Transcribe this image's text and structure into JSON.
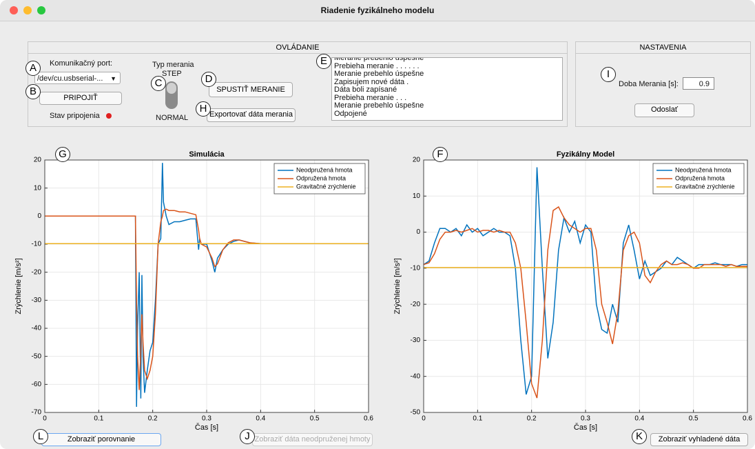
{
  "window": {
    "title": "Riadenie fyzikálneho modelu"
  },
  "controls": {
    "title": "OVLÁDANIE",
    "port_label": "Komunikačný port:",
    "port_value": "/dev/cu.usbserial-...",
    "connect_button": "PRIPOJIŤ",
    "connection_status": "Stav pripojenia",
    "mode_label": "Typ merania",
    "mode_on": "STEP",
    "mode_off": "NORMAL",
    "start_button": "SPUSTIŤ MERANIE",
    "export_button": "Exportovať dáta merania",
    "log": [
      "Meranie prebehlo úspešne",
      "Prebieha meranie . . . . . .",
      "Meranie prebehlo úspešne",
      "Zapisujem nové dáta .",
      "Dáta boli zapísané",
      "Prebieha meranie . . .",
      "Meranie prebehlo úspešne",
      "Odpojené"
    ]
  },
  "settings": {
    "title": "NASTAVENIA",
    "duration_label": "Doba Merania [s]:",
    "duration_value": "0.9",
    "send_button": "Odoslať"
  },
  "buttons": {
    "compare": "Zobraziť porovnanie",
    "unsprung": "Zobraziť dáta neodpruženej hmoty",
    "smoothed": "Zobraziť vyhladené dáta"
  },
  "markers": [
    "A",
    "B",
    "C",
    "D",
    "E",
    "F",
    "G",
    "H",
    "I",
    "J",
    "K",
    "L"
  ],
  "chart_data": [
    {
      "type": "line",
      "title": "Simulácia",
      "x_label": "Čas [s]",
      "y_label": "Zrýchlenie  [m/s²]",
      "xlim": [
        0,
        0.6
      ],
      "ylim": [
        -70,
        20
      ],
      "xticks": [
        0,
        0.1,
        0.2,
        0.3,
        0.4,
        0.5,
        0.6
      ],
      "yticks": [
        -70,
        -60,
        -50,
        -40,
        -30,
        -20,
        -10,
        0,
        10,
        20
      ],
      "grid": true,
      "legend": "upper-right",
      "x": [
        0,
        0.168,
        0.17,
        0.172,
        0.175,
        0.178,
        0.18,
        0.182,
        0.185,
        0.19,
        0.195,
        0.2,
        0.205,
        0.21,
        0.215,
        0.218,
        0.22,
        0.225,
        0.23,
        0.24,
        0.25,
        0.26,
        0.27,
        0.28,
        0.285,
        0.287,
        0.29,
        0.3,
        0.31,
        0.315,
        0.32,
        0.33,
        0.34,
        0.35,
        0.36,
        0.38,
        0.4,
        0.45,
        0.5,
        0.6
      ],
      "series": [
        {
          "name": "Neodpružená hmota",
          "color": "#0072bd",
          "values": [
            0,
            0,
            -68,
            -40,
            -20,
            -65,
            -21,
            -50,
            -63,
            -55,
            -48,
            -45,
            -30,
            -10,
            -8,
            19,
            5,
            0,
            -3,
            -2,
            -2,
            -1.5,
            -1,
            -1,
            -12,
            -8,
            -10,
            -10,
            -16,
            -20,
            -15,
            -12,
            -10,
            -9,
            -8.5,
            -9.5,
            -9.8,
            -9.8,
            -9.8,
            -9.8
          ]
        },
        {
          "name": "Odpružená hmota",
          "color": "#d95319",
          "values": [
            0,
            0,
            -30,
            -50,
            -62,
            -48,
            -35,
            -45,
            -55,
            -58,
            -55,
            -50,
            -35,
            -10,
            -2,
            0,
            2,
            2.5,
            2,
            2,
            1.5,
            1.5,
            1,
            0.5,
            -5,
            -8,
            -10,
            -11,
            -15,
            -18,
            -17,
            -12,
            -9.5,
            -8.5,
            -8.5,
            -9.5,
            -9.8,
            -9.8,
            -9.8,
            -9.8
          ]
        },
        {
          "name": "Gravitačné zrýchlenie",
          "color": "#edb120",
          "x": [
            0,
            0.6
          ],
          "values": [
            -9.81,
            -9.81
          ]
        }
      ]
    },
    {
      "type": "line",
      "title": "Fyzikálny Model",
      "x_label": "Čas [s]",
      "y_label": "Zrýchlenie  [m/s²]",
      "xlim": [
        0,
        0.6
      ],
      "ylim": [
        -50,
        20
      ],
      "xticks": [
        0,
        0.1,
        0.2,
        0.3,
        0.4,
        0.5,
        0.6
      ],
      "yticks": [
        -50,
        -40,
        -30,
        -20,
        -10,
        0,
        10,
        20
      ],
      "grid": true,
      "legend": "upper-right",
      "x": [
        0,
        0.01,
        0.02,
        0.03,
        0.04,
        0.05,
        0.06,
        0.07,
        0.08,
        0.09,
        0.1,
        0.11,
        0.12,
        0.13,
        0.14,
        0.15,
        0.16,
        0.17,
        0.18,
        0.19,
        0.2,
        0.21,
        0.22,
        0.23,
        0.24,
        0.25,
        0.26,
        0.27,
        0.28,
        0.29,
        0.3,
        0.31,
        0.32,
        0.33,
        0.34,
        0.35,
        0.36,
        0.37,
        0.38,
        0.39,
        0.4,
        0.41,
        0.42,
        0.43,
        0.44,
        0.45,
        0.46,
        0.47,
        0.48,
        0.49,
        0.5,
        0.51,
        0.52,
        0.53,
        0.54,
        0.55,
        0.56,
        0.57,
        0.58,
        0.59,
        0.6
      ],
      "series": [
        {
          "name": "Neodpružená hmota",
          "color": "#0072bd",
          "values": [
            -9,
            -8,
            -3,
            1,
            1,
            0,
            1,
            -1,
            2,
            0,
            1,
            -1,
            0,
            1,
            0,
            0,
            -1,
            -10,
            -30,
            -45,
            -40,
            18,
            -10,
            -35,
            -25,
            -5,
            4,
            0,
            3,
            -3,
            2,
            0,
            -20,
            -27,
            -28,
            -20,
            -25,
            -3,
            2,
            -5,
            -13,
            -8,
            -12,
            -11,
            -10,
            -8,
            -9,
            -7,
            -8,
            -9,
            -10,
            -9,
            -9,
            -9,
            -8.5,
            -9,
            -9,
            -9,
            -9.5,
            -9,
            -9
          ]
        },
        {
          "name": "Odpružená hmota",
          "color": "#d95319",
          "values": [
            -9,
            -8.5,
            -6,
            -2,
            0,
            0,
            0.5,
            0,
            0.5,
            1,
            0,
            0.5,
            0.5,
            0,
            0.5,
            0,
            0,
            -3,
            -10,
            -25,
            -42,
            -46,
            -30,
            -5,
            6,
            7,
            4,
            2,
            1,
            0,
            1,
            1,
            -5,
            -20,
            -25,
            -31,
            -22,
            -5,
            -1,
            0,
            -3,
            -12,
            -14,
            -11,
            -9,
            -8,
            -9,
            -9,
            -8.5,
            -9,
            -10,
            -10,
            -9,
            -9,
            -9,
            -9,
            -9.5,
            -9,
            -9.5,
            -9.5,
            -9.5
          ]
        },
        {
          "name": "Gravitačné zrýchlenie",
          "color": "#edb120",
          "x": [
            0,
            0.6
          ],
          "values": [
            -9.81,
            -9.81
          ]
        }
      ]
    }
  ]
}
